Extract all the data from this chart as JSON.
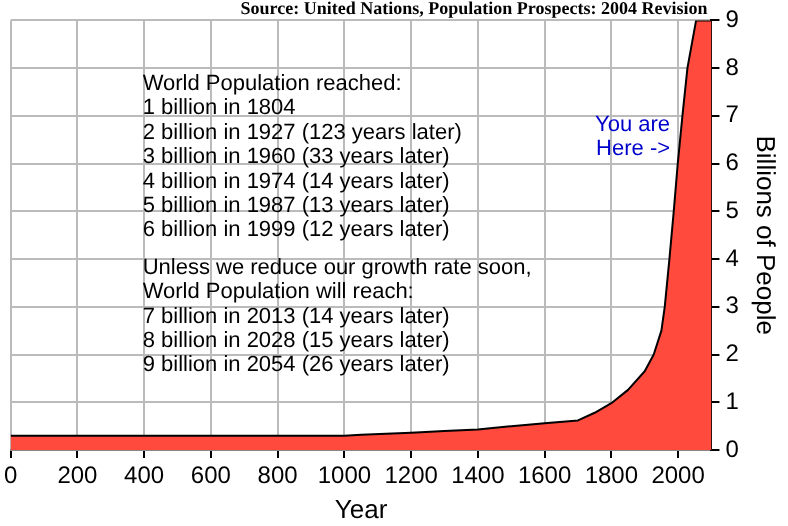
{
  "chart_data": {
    "type": "area",
    "xlabel": "Year",
    "ylabel": "Billions of People",
    "annotations": [
      "Source: United Nations, Population Prospects: 2004 Revision",
      "World Population reached:\n1 billion in 1804\n2 billion in 1927 (123 years later)\n3 billion in 1960 (33 years later)\n4 billion in 1974 (14 years later)\n5 billion in 1987 (13 years later)\n6 billion in 1999 (12 years later)",
      "Unless we reduce our growth rate soon,\nWorld Population will reach:\n7 billion in 2013 (14 years later)\n8 billion in 2028 (15 years later)\n9 billion in 2054 (26 years later)",
      {
        "text": "You are\nHere ->",
        "x": 2000,
        "y": 6.3
      }
    ],
    "x": [
      0,
      1000,
      1050,
      1200,
      1300,
      1400,
      1500,
      1600,
      1700,
      1750,
      1800,
      1850,
      1900,
      1927,
      1950,
      1960,
      1974,
      1987,
      1999,
      2013,
      2028,
      2054,
      2100
    ],
    "series": [
      {
        "color": "#ff4a3d",
        "values": [
          0.3,
          0.3,
          0.32,
          0.36,
          0.4,
          0.43,
          0.5,
          0.56,
          0.62,
          0.78,
          0.98,
          1.26,
          1.65,
          2,
          2.5,
          3,
          4,
          5,
          6,
          7,
          8,
          9,
          9
        ]
      }
    ],
    "xlim": [
      0,
      2100
    ],
    "xticks": [
      0,
      200,
      400,
      600,
      800,
      1000,
      1200,
      1400,
      1600,
      1800,
      2000
    ],
    "ylim": [
      0,
      9
    ],
    "yticks": [
      0,
      1,
      2,
      3,
      4,
      5,
      6,
      7,
      8,
      9
    ],
    "grid": true,
    "legend": false
  }
}
